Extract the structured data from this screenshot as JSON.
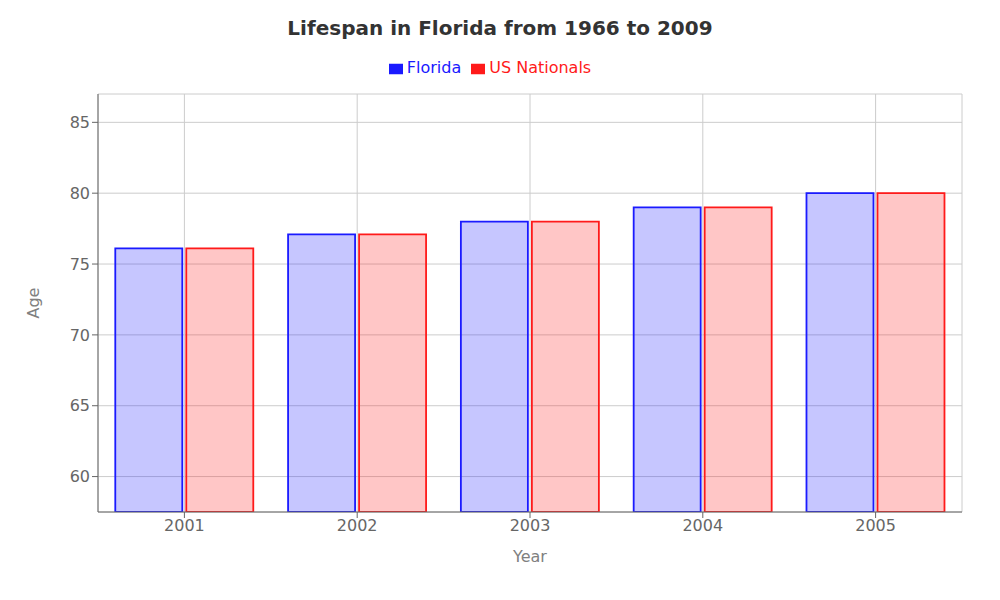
{
  "chart_data": {
    "type": "bar",
    "title": "Lifespan in Florida from 1966 to 2009",
    "x_label": "Year",
    "y_label": "Age",
    "categories": [
      "2001",
      "2002",
      "2003",
      "2004",
      "2005"
    ],
    "series": [
      {
        "name": "Florida",
        "color": "#1a1aff",
        "values": [
          76.1,
          77.1,
          78.0,
          79.0,
          80.0
        ]
      },
      {
        "name": "US Nationals",
        "color": "#ff1a1a",
        "values": [
          76.1,
          77.1,
          78.0,
          79.0,
          80.0
        ]
      }
    ],
    "ylim": [
      57.5,
      87
    ],
    "yticks": [
      60,
      65,
      70,
      75,
      80,
      85
    ],
    "grid": true,
    "legend": "top"
  }
}
